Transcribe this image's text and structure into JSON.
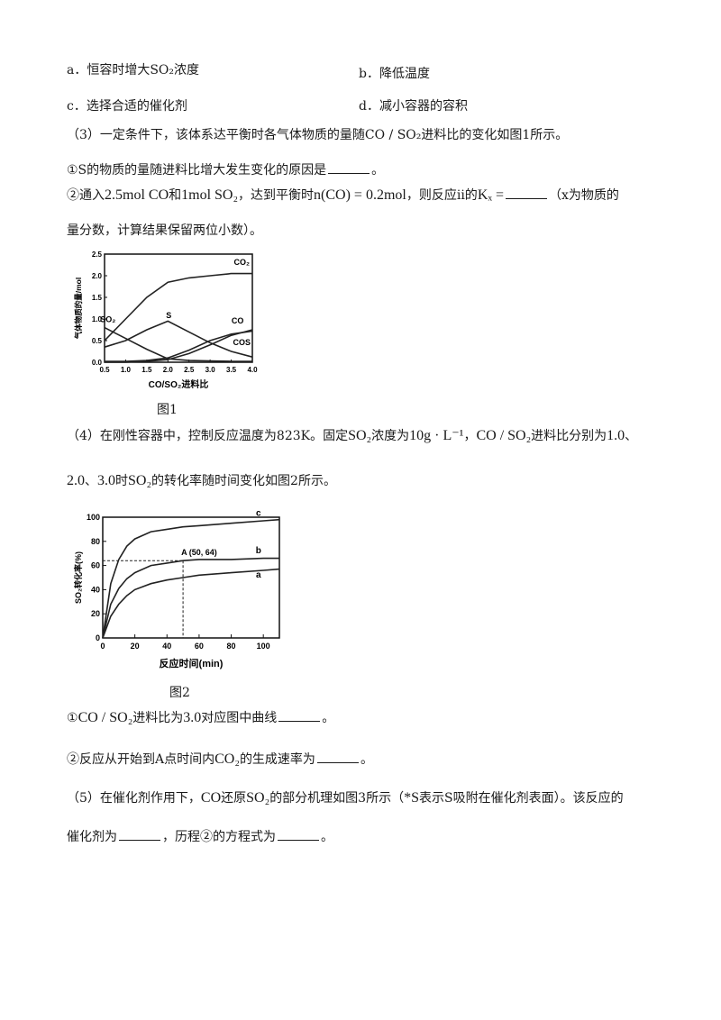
{
  "options": {
    "a": "a．恒容时增大SO₂浓度",
    "b": "b．降低温度",
    "c": "c．选择合适的催化剂",
    "d": "d．减小容器的容积"
  },
  "q3": {
    "intro": "（3）一定条件下，该体系达平衡时各气体物质的量随CO / SO₂进料比的变化如图1所示。",
    "p1": "①S的物质的量随进料比增大发生变化的原因是",
    "p1_end": "。",
    "p2_a": "②通入",
    "p2_b": "2.5mol CO",
    "p2_c": "和",
    "p2_d": "1mol SO₂",
    "p2_e": "，达到平衡时",
    "p2_f": "n(CO) = 0.2mol",
    "p2_g": "，则反应ii的",
    "p2_h": "Kₓ =",
    "p2_i": "（x为物质的",
    "p2_cont": "量分数，计算结果保留两位小数）。"
  },
  "fig1": {
    "caption": "图1",
    "chart_data": {
      "type": "line",
      "xlabel": "CO/SO₂进料比",
      "ylabel": "气体物质的量/mol",
      "xlim": [
        0.5,
        4.0
      ],
      "ylim": [
        0,
        2.5
      ],
      "xticks": [
        "0.5",
        "1.0",
        "1.5",
        "2.0",
        "2.5",
        "3.0",
        "3.5",
        "4.0"
      ],
      "yticks": [
        "0.0",
        "0.5",
        "1.0",
        "1.5",
        "2.0",
        "2.5"
      ],
      "series": [
        {
          "name": "CO₂",
          "x": [
            0.5,
            1.0,
            1.5,
            2.0,
            2.5,
            3.0,
            3.5,
            4.0
          ],
          "y": [
            0.5,
            1.0,
            1.5,
            1.85,
            1.95,
            2.0,
            2.05,
            2.05
          ]
        },
        {
          "name": "S",
          "x": [
            0.5,
            1.0,
            1.5,
            2.0,
            2.5,
            3.0,
            3.5,
            4.0
          ],
          "y": [
            0.35,
            0.5,
            0.75,
            0.95,
            0.7,
            0.45,
            0.25,
            0.12
          ]
        },
        {
          "name": "SO₂",
          "x": [
            0.5,
            1.0,
            1.5,
            2.0,
            2.5,
            3.0,
            3.5,
            4.0
          ],
          "y": [
            0.8,
            0.55,
            0.3,
            0.08,
            0.04,
            0.03,
            0.02,
            0.02
          ]
        },
        {
          "name": "CO",
          "x": [
            0.5,
            1.0,
            1.5,
            2.0,
            2.5,
            3.0,
            3.5,
            4.0
          ],
          "y": [
            0.02,
            0.02,
            0.04,
            0.1,
            0.28,
            0.5,
            0.65,
            0.72
          ]
        },
        {
          "name": "COS",
          "x": [
            0.5,
            1.0,
            1.5,
            2.0,
            2.5,
            3.0,
            3.5,
            4.0
          ],
          "y": [
            0.0,
            0.0,
            0.02,
            0.06,
            0.2,
            0.4,
            0.62,
            0.75
          ]
        }
      ]
    }
  },
  "q4": {
    "l1_a": "（4）在刚性容器中，控制反应温度为823K。固定",
    "l1_b": "SO₂",
    "l1_c": "浓度为",
    "l1_d": "10g · L⁻¹",
    "l1_e": "，",
    "l1_f": "CO / SO₂",
    "l1_g": "进料比分别为",
    "l1_h": "1.0",
    "l1_i": "、",
    "l2_a": "2.0",
    "l2_b": "、",
    "l2_c": "3.0",
    "l2_d": "时",
    "l2_e": "SO₂",
    "l2_f": "的转化率随时间变化如图2所示。"
  },
  "fig2": {
    "caption": "图2",
    "annotation": "A (50, 64)",
    "chart_data": {
      "type": "line",
      "xlabel": "反应时间(min)",
      "ylabel": "SO₂转化率(%)",
      "xlim": [
        0,
        110
      ],
      "ylim": [
        0,
        100
      ],
      "xticks": [
        "0",
        "20",
        "40",
        "60",
        "80",
        "100"
      ],
      "yticks": [
        "0",
        "20",
        "40",
        "60",
        "80",
        "100"
      ],
      "series": [
        {
          "name": "c",
          "x": [
            0,
            5,
            10,
            15,
            20,
            30,
            40,
            50,
            60,
            80,
            100,
            110
          ],
          "y": [
            0,
            45,
            65,
            76,
            82,
            88,
            90,
            92,
            93,
            95,
            97,
            98
          ]
        },
        {
          "name": "b",
          "x": [
            0,
            5,
            10,
            15,
            20,
            30,
            40,
            50,
            60,
            80,
            100,
            110
          ],
          "y": [
            0,
            28,
            41,
            49,
            54,
            60,
            62,
            64,
            65,
            65,
            66,
            66
          ]
        },
        {
          "name": "a",
          "x": [
            0,
            5,
            10,
            15,
            20,
            30,
            40,
            50,
            60,
            80,
            100,
            110
          ],
          "y": [
            0,
            18,
            28,
            35,
            40,
            45,
            48,
            50,
            52,
            54,
            56,
            57
          ]
        }
      ],
      "point": {
        "label": "A",
        "x": 50,
        "y": 64
      }
    }
  },
  "q4_sub": {
    "s1_a": "①",
    "s1_b": "CO / SO₂",
    "s1_c": "进料比为",
    "s1_d": "3.0",
    "s1_e": "对应图中曲线",
    "s1_f": "。",
    "s2_a": "②反应从开始到A点时间内",
    "s2_b": "CO₂",
    "s2_c": "的生成速率为",
    "s2_d": "。"
  },
  "q5": {
    "l1_a": "（5）在催化剂作用下，",
    "l1_b": "CO",
    "l1_c": "还原",
    "l1_d": "SO₂",
    "l1_e": "的部分机理如图3所示（",
    "l1_f": "*S",
    "l1_g": "表示S吸附在催化剂表面）。该反应的",
    "l2_a": "催化剂为",
    "l2_b": "，历程②的方程式为",
    "l2_c": "。"
  }
}
